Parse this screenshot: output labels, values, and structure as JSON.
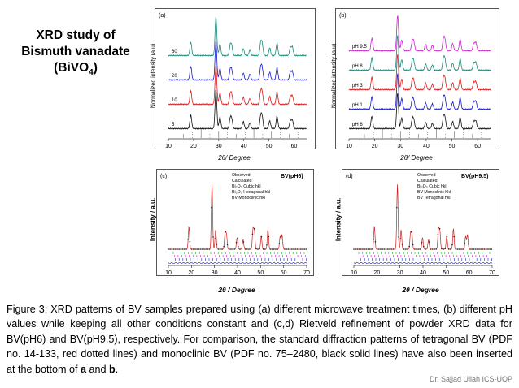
{
  "slide": {
    "title_line1": "XRD study of",
    "title_line2": "Bismuth vanadate",
    "title_line3_pre": "(BiVO",
    "title_line3_sub": "4",
    "title_line3_post": ")",
    "caption_1": "Figure 3: XRD patterns of BV samples prepared using (a) different microwave treatment times, (b) different pH values while keeping all other conditions constant and (c,d) Rietveld refinement of powder XRD data for BV(pH6) and BV(pH9.5), respectively. For comparison, the standard diffraction patterns of tetragonal BV (PDF no. 14-133, red dotted lines) and monoclinic BV (PDF no. 75–2480, black solid lines) have also been inserted at the bottom of ",
    "caption_a": "a",
    "caption_and": " and ",
    "caption_b": "b",
    "caption_end": ".",
    "credit": "Dr. Sajjad Ullah ICS-UOP"
  },
  "panels": {
    "a": {
      "tag": "(a)",
      "ylabel": "Normalized intensity (a.u)",
      "xlabel": "2θ/ Degree",
      "xticks": [
        "10",
        "20",
        "30",
        "40",
        "50",
        "60"
      ],
      "curve_labels": [
        "60",
        "20",
        "10",
        "5"
      ],
      "colors": [
        "#1a8a7a",
        "#1a1acc",
        "#dd1a1a",
        "#111111"
      ]
    },
    "b": {
      "tag": "(b)",
      "ylabel": "Normalized intensity (a.u)",
      "xlabel": "2θ/ Degree",
      "xticks": [
        "10",
        "20",
        "30",
        "40",
        "50",
        "60"
      ],
      "curve_labels": [
        "pH 9.5",
        "pH 8",
        "pH 3",
        "pH 1",
        "pH 6"
      ],
      "colors": [
        "#cc22cc",
        "#1a8a7a",
        "#dd1a1a",
        "#1a1acc",
        "#111111"
      ]
    },
    "c": {
      "tag": "(c)",
      "sample": "BV(pH6)",
      "ylabel": "Intensity / a.u.",
      "xlabel": "2θ / Degree",
      "xticks": [
        "10",
        "20",
        "30",
        "40",
        "50",
        "60",
        "70"
      ],
      "legend": [
        "Observed",
        "Calculated",
        "Bi₂O₃ Cubic hkl",
        "Bi₂O₃ Hexagonal hkl",
        "BV Monoclinic hkl"
      ]
    },
    "d": {
      "tag": "(d)",
      "sample": "BV(pH9.5)",
      "ylabel": "Intensity / a.u.",
      "xlabel": "2θ / Degree",
      "xticks": [
        "10",
        "20",
        "30",
        "40",
        "50",
        "60",
        "70"
      ],
      "legend": [
        "Observed",
        "Calculated",
        "Bi₂O₃ Cubic hkl",
        "BV Monoclinic hkl",
        "BV Tetragonal hkl"
      ]
    }
  }
}
